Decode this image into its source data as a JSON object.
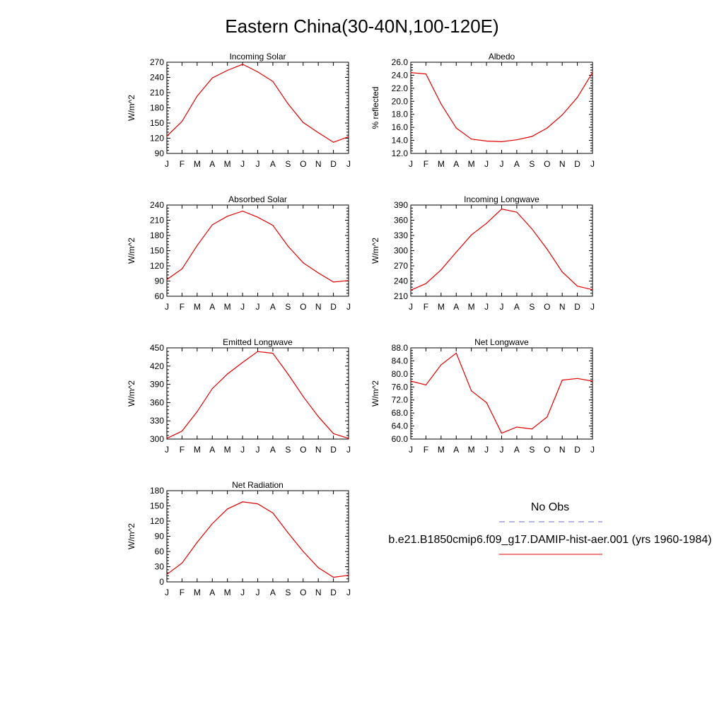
{
  "title": "Eastern China(30-40N,100-120E)",
  "legend": {
    "obs_label": "No Obs",
    "obs_color": "#6b6bd8",
    "model_label": "b.e21.B1850cmip6.f09_g17.DAMIP-hist-aer.001 (yrs 1960-1984)",
    "model_color": "#e00000"
  },
  "chart_data": [
    {
      "type": "line",
      "title": "Incoming Solar",
      "ylabel": "W/m^2",
      "x": [
        "J",
        "F",
        "M",
        "A",
        "M",
        "J",
        "J",
        "A",
        "S",
        "O",
        "N",
        "D",
        "J"
      ],
      "ylim": [
        90,
        270
      ],
      "yticks": [
        "90",
        "120",
        "150",
        "180",
        "210",
        "240",
        "270"
      ],
      "series": [
        {
          "values": [
            124,
            153,
            203,
            239,
            254,
            266,
            251,
            232,
            188,
            151,
            131,
            112,
            123
          ]
        }
      ]
    },
    {
      "type": "line",
      "title": "Albedo",
      "ylabel": "% reflected",
      "x": [
        "J",
        "F",
        "M",
        "A",
        "M",
        "J",
        "J",
        "A",
        "S",
        "O",
        "N",
        "D",
        "J"
      ],
      "ylim": [
        12.0,
        26.0
      ],
      "yticks": [
        "12.0",
        "14.0",
        "16.0",
        "18.0",
        "20.0",
        "22.0",
        "24.0",
        "26.0"
      ],
      "series": [
        {
          "values": [
            24.4,
            24.2,
            19.6,
            15.9,
            14.2,
            13.9,
            13.8,
            14.1,
            14.6,
            15.9,
            17.9,
            20.6,
            24.4
          ]
        }
      ]
    },
    {
      "type": "line",
      "title": "Absorbed Solar",
      "ylabel": "W/m^2",
      "x": [
        "J",
        "F",
        "M",
        "A",
        "M",
        "J",
        "J",
        "A",
        "S",
        "O",
        "N",
        "D",
        "J"
      ],
      "ylim": [
        60,
        240
      ],
      "yticks": [
        "60",
        "90",
        "120",
        "150",
        "180",
        "210",
        "240"
      ],
      "series": [
        {
          "values": [
            93,
            114,
            160,
            201,
            218,
            228,
            216,
            200,
            159,
            126,
            106,
            88,
            91
          ]
        }
      ]
    },
    {
      "type": "line",
      "title": "Incoming Longwave",
      "ylabel": "W/m^2",
      "x": [
        "J",
        "F",
        "M",
        "A",
        "M",
        "J",
        "J",
        "A",
        "S",
        "O",
        "N",
        "D",
        "J"
      ],
      "ylim": [
        210,
        390
      ],
      "yticks": [
        "210",
        "240",
        "270",
        "300",
        "330",
        "360",
        "390"
      ],
      "series": [
        {
          "values": [
            222,
            235,
            262,
            297,
            331,
            354,
            382,
            376,
            343,
            303,
            258,
            230,
            223
          ]
        }
      ]
    },
    {
      "type": "line",
      "title": "Emitted Longwave",
      "ylabel": "W/m^2",
      "x": [
        "J",
        "F",
        "M",
        "A",
        "M",
        "J",
        "J",
        "A",
        "S",
        "O",
        "N",
        "D",
        "J"
      ],
      "ylim": [
        300,
        450
      ],
      "yticks": [
        "300",
        "330",
        "360",
        "390",
        "420",
        "450"
      ],
      "series": [
        {
          "values": [
            301,
            313,
            345,
            383,
            407,
            426,
            444,
            441,
            407,
            370,
            337,
            309,
            301
          ]
        }
      ]
    },
    {
      "type": "line",
      "title": "Net Longwave",
      "ylabel": "W/m^2",
      "x": [
        "J",
        "F",
        "M",
        "A",
        "M",
        "J",
        "J",
        "A",
        "S",
        "O",
        "N",
        "D",
        "J"
      ],
      "ylim": [
        60.0,
        88.0
      ],
      "yticks": [
        "60.0",
        "64.0",
        "68.0",
        "72.0",
        "76.0",
        "80.0",
        "84.0",
        "88.0"
      ],
      "series": [
        {
          "values": [
            77.8,
            76.6,
            82.8,
            86.4,
            74.8,
            71.2,
            61.8,
            63.7,
            63.1,
            66.8,
            78.1,
            78.6,
            77.8
          ]
        }
      ]
    },
    {
      "type": "line",
      "title": "Net Radiation",
      "ylabel": "W/m^2",
      "x": [
        "J",
        "F",
        "M",
        "A",
        "M",
        "J",
        "J",
        "A",
        "S",
        "O",
        "N",
        "D",
        "J"
      ],
      "ylim": [
        0,
        180
      ],
      "yticks": [
        "0",
        "30",
        "60",
        "90",
        "120",
        "150",
        "180"
      ],
      "series": [
        {
          "values": [
            15,
            37,
            78,
            115,
            144,
            158,
            154,
            136,
            97,
            60,
            28,
            9,
            13
          ]
        }
      ]
    }
  ]
}
